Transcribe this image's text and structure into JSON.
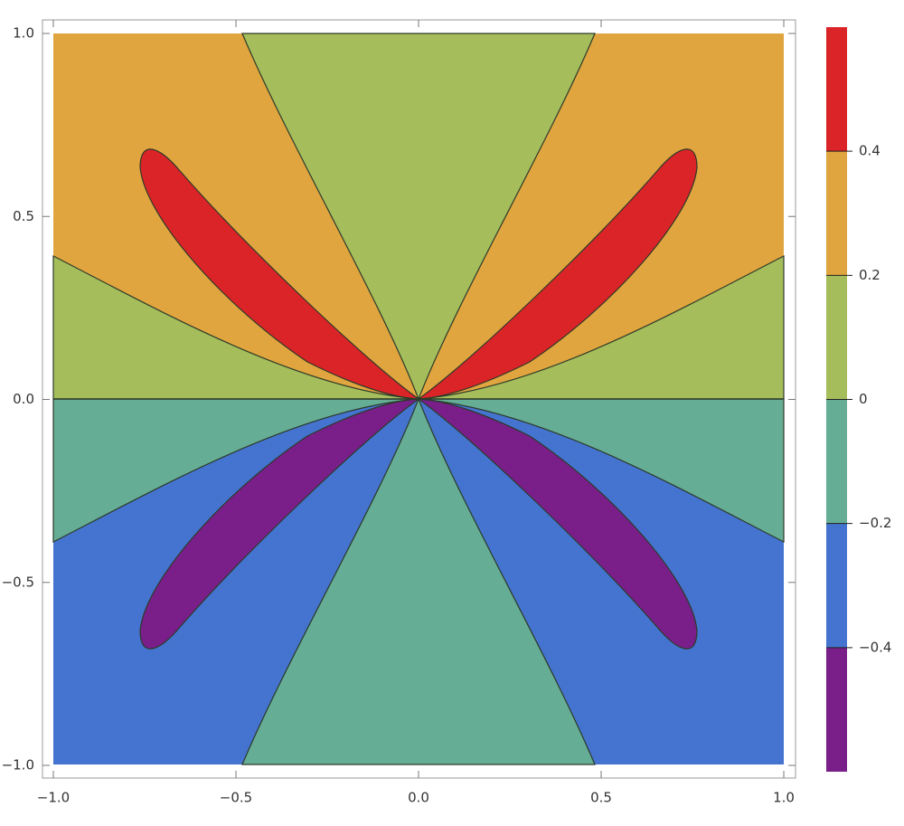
{
  "chart_data": {
    "type": "contour",
    "xlim": [
      -1,
      1
    ],
    "ylim": [
      -1,
      1
    ],
    "xticks": [
      {
        "value": -1,
        "label": "−1.0"
      },
      {
        "value": -0.5,
        "label": "−0.5"
      },
      {
        "value": 0,
        "label": "0.0"
      },
      0.5,
      {
        "value": 1,
        "label": "1.0"
      }
    ],
    "yticks": [
      {
        "value": -1,
        "label": "−1.0"
      },
      {
        "value": -0.5,
        "label": "−0.5"
      },
      {
        "value": 0,
        "label": "0.0"
      },
      0.5,
      {
        "value": 1,
        "label": "1.0"
      }
    ],
    "zlim": [
      -0.6,
      0.6
    ],
    "zticks": [
      {
        "value": -0.4,
        "label": "−0.4"
      },
      {
        "value": -0.2,
        "label": "−0.2"
      },
      0,
      0.2,
      0.4
    ],
    "colors": [
      "#7a1f8a",
      "#4474cf",
      "#65ad95",
      "#a5be5b",
      "#e0a53e",
      "#da2427"
    ]
  }
}
